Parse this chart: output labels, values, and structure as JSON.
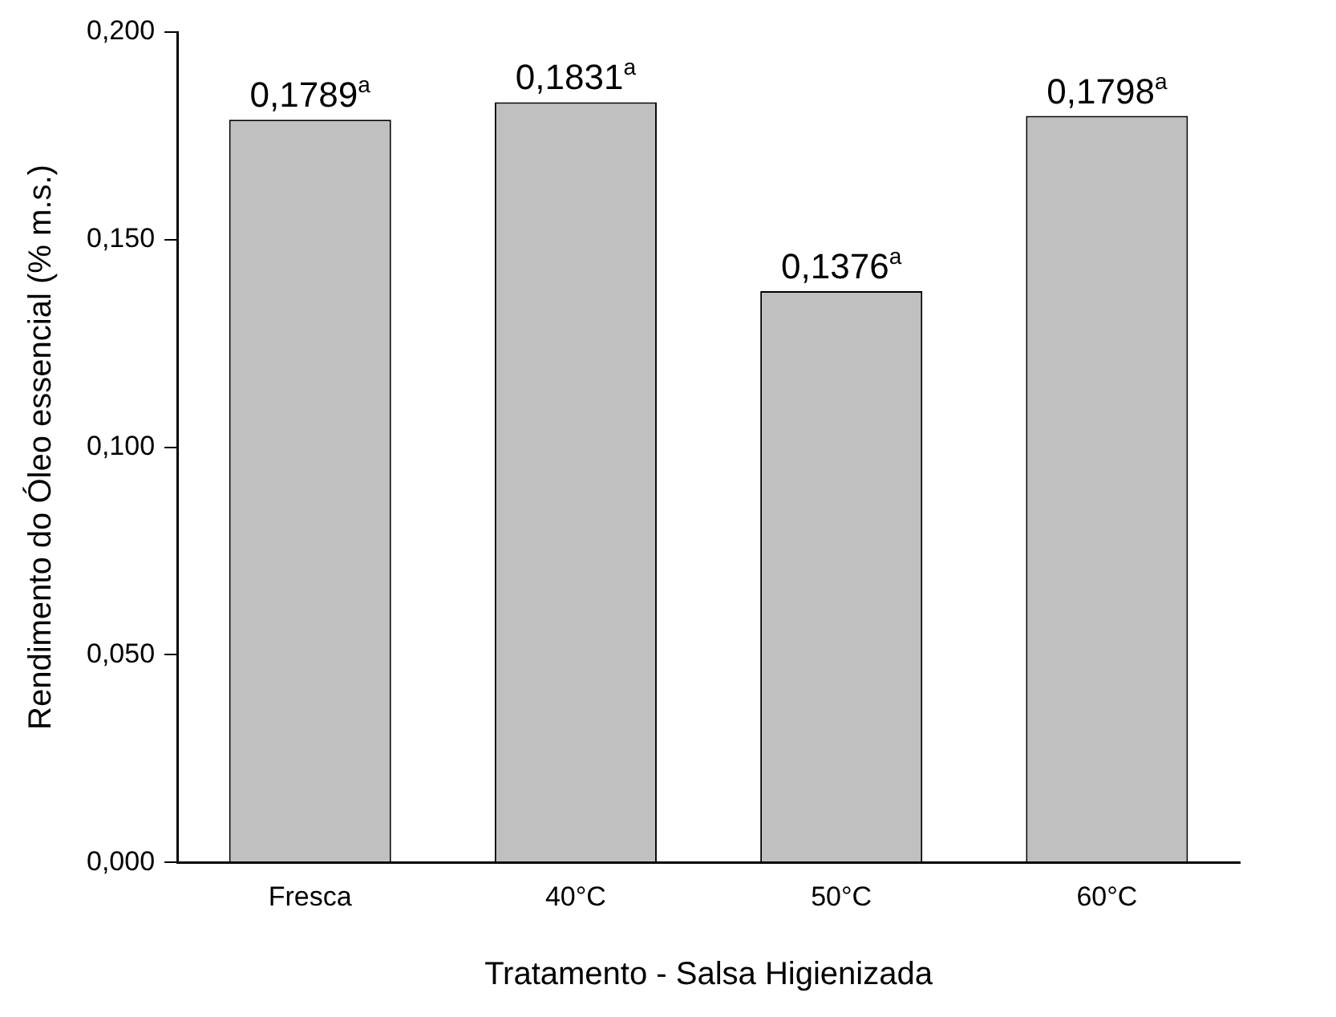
{
  "chart_data": {
    "type": "bar",
    "xlabel": "Tratamento - Salsa Higienizada",
    "ylabel": "Rendimento do Óleo essencial (% m.s.)",
    "categories": [
      "Fresca",
      "40°C",
      "50°C",
      "60°C"
    ],
    "values": [
      0.1789,
      0.1831,
      0.1376,
      0.1798
    ],
    "value_labels": [
      "0,1789$^{a}$",
      "0,1831$^{a}$",
      "0,1376$^{a}$",
      "0,1798$^{a}$"
    ],
    "color": "#c0c0c0",
    "ylim": [
      0,
      0.2
    ],
    "yticks": [
      {
        "value": 0,
        "label": "0,000"
      },
      {
        "value": 0.05,
        "label": "0,050"
      },
      {
        "value": 0.1,
        "label": "0,100"
      },
      {
        "value": 0.15,
        "label": "0,150"
      },
      {
        "value": 0.2,
        "label": "0,200"
      }
    ],
    "grid": false,
    "legend": false
  }
}
